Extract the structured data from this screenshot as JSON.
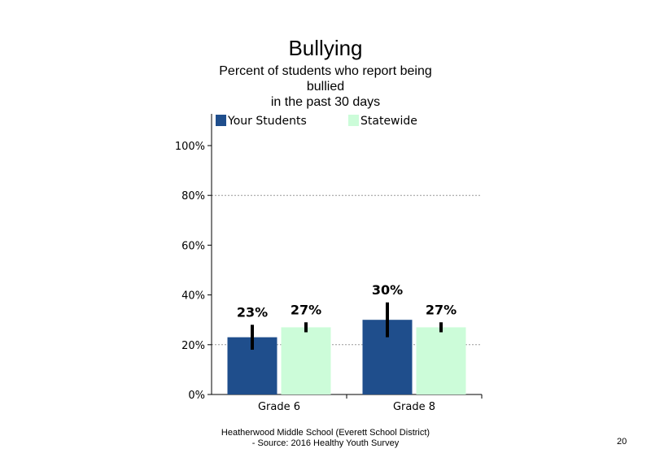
{
  "chart_data": {
    "type": "bar",
    "title": "Bullying",
    "subtitle": "Percent of students who report being bullied in the past 30 days",
    "subtitle_lines": [
      "Percent of students  who report being",
      "bullied",
      "in the past 30 days"
    ],
    "categories": [
      "Grade 6",
      "Grade 8"
    ],
    "series": [
      {
        "name": "Your Students",
        "color": "#1f4e8c",
        "values": [
          23,
          30
        ],
        "labels": [
          "23%",
          "30%"
        ],
        "error_low": [
          18,
          23
        ],
        "error_high": [
          28,
          37
        ]
      },
      {
        "name": "Statewide",
        "color": "#ccfcd9",
        "values": [
          27,
          27
        ],
        "labels": [
          "27%",
          "27%"
        ],
        "error_low": [
          25,
          25
        ],
        "error_high": [
          29,
          29
        ]
      }
    ],
    "ylim": [
      0,
      100
    ],
    "yticks": [
      0,
      20,
      40,
      60,
      80,
      100
    ],
    "ytick_labels": [
      "0%",
      "20%",
      "40%",
      "60%",
      "80%",
      "100%"
    ],
    "gridlines": [
      20,
      80
    ],
    "legend": "top"
  },
  "footer": {
    "line1": "Heatherwood Middle School (Everett School District)",
    "line2": "- Source: 2016 Healthy  Youth Survey"
  },
  "page_number": "20"
}
